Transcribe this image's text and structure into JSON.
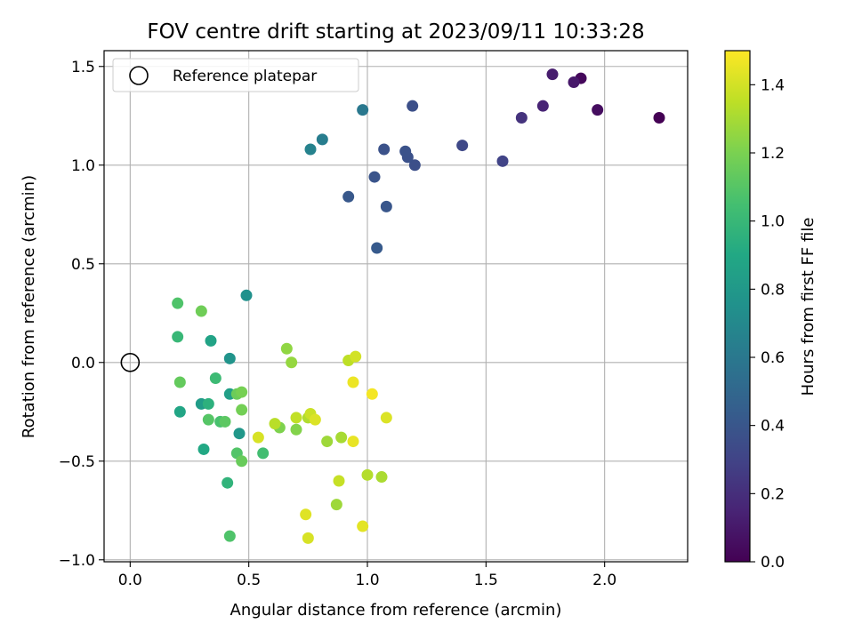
{
  "chart_data": {
    "type": "scatter",
    "title": "FOV centre drift starting at 2023/09/11 10:33:28",
    "xlabel": "Angular distance from reference (arcmin)",
    "ylabel": "Rotation from reference (arcmin)",
    "xlim": [
      -0.11,
      2.35
    ],
    "ylim": [
      -1.01,
      1.58
    ],
    "xticks": [
      0.0,
      0.5,
      1.0,
      1.5,
      2.0
    ],
    "xtick_labels": [
      "0.0",
      "0.5",
      "1.0",
      "1.5",
      "2.0"
    ],
    "yticks": [
      -1.0,
      -0.5,
      0.0,
      0.5,
      1.0,
      1.5
    ],
    "ytick_labels": [
      "−1.0",
      "−0.5",
      "0.0",
      "0.5",
      "1.0",
      "1.5"
    ],
    "grid": true,
    "legend": {
      "position": "top-left",
      "entries": [
        "Reference platepar"
      ]
    },
    "reference_point": {
      "x": 0.0,
      "y": 0.0,
      "marker": "open-circle"
    },
    "colorbar": {
      "label": "Hours from first FF file",
      "colormap": "viridis",
      "range": [
        0.0,
        1.5
      ],
      "ticks": [
        0.0,
        0.2,
        0.4,
        0.6,
        0.8,
        1.0,
        1.2,
        1.4
      ],
      "tick_labels": [
        "0.0",
        "0.2",
        "0.4",
        "0.6",
        "0.8",
        "1.0",
        "1.2",
        "1.4"
      ]
    },
    "points": [
      {
        "x": 2.23,
        "y": 1.24,
        "c": 0.0
      },
      {
        "x": 1.9,
        "y": 1.44,
        "c": 0.03
      },
      {
        "x": 1.97,
        "y": 1.28,
        "c": 0.05
      },
      {
        "x": 1.87,
        "y": 1.42,
        "c": 0.1
      },
      {
        "x": 1.78,
        "y": 1.46,
        "c": 0.12
      },
      {
        "x": 1.74,
        "y": 1.3,
        "c": 0.15
      },
      {
        "x": 1.65,
        "y": 1.24,
        "c": 0.22
      },
      {
        "x": 1.57,
        "y": 1.02,
        "c": 0.3
      },
      {
        "x": 1.4,
        "y": 1.1,
        "c": 0.33
      },
      {
        "x": 1.2,
        "y": 1.0,
        "c": 0.36
      },
      {
        "x": 1.19,
        "y": 1.3,
        "c": 0.36
      },
      {
        "x": 1.17,
        "y": 1.04,
        "c": 0.37
      },
      {
        "x": 1.16,
        "y": 1.07,
        "c": 0.38
      },
      {
        "x": 1.07,
        "y": 1.08,
        "c": 0.38
      },
      {
        "x": 1.03,
        "y": 0.94,
        "c": 0.39
      },
      {
        "x": 1.08,
        "y": 0.79,
        "c": 0.4
      },
      {
        "x": 0.92,
        "y": 0.84,
        "c": 0.41
      },
      {
        "x": 1.04,
        "y": 0.58,
        "c": 0.42
      },
      {
        "x": 0.98,
        "y": 1.28,
        "c": 0.6
      },
      {
        "x": 0.81,
        "y": 1.13,
        "c": 0.63
      },
      {
        "x": 0.76,
        "y": 1.08,
        "c": 0.66
      },
      {
        "x": 0.49,
        "y": 0.34,
        "c": 0.75
      },
      {
        "x": 0.42,
        "y": 0.02,
        "c": 0.77
      },
      {
        "x": 0.46,
        "y": -0.36,
        "c": 0.79
      },
      {
        "x": 0.3,
        "y": -0.21,
        "c": 0.82
      },
      {
        "x": 0.42,
        "y": -0.16,
        "c": 0.84
      },
      {
        "x": 0.34,
        "y": 0.11,
        "c": 0.87
      },
      {
        "x": 0.21,
        "y": -0.25,
        "c": 0.88
      },
      {
        "x": 0.31,
        "y": -0.44,
        "c": 0.9
      },
      {
        "x": 0.33,
        "y": -0.21,
        "c": 0.95
      },
      {
        "x": 0.41,
        "y": -0.61,
        "c": 0.97
      },
      {
        "x": 0.2,
        "y": 0.13,
        "c": 1.0
      },
      {
        "x": 0.36,
        "y": -0.08,
        "c": 1.02
      },
      {
        "x": 0.56,
        "y": -0.46,
        "c": 1.04
      },
      {
        "x": 0.38,
        "y": -0.3,
        "c": 1.06
      },
      {
        "x": 0.42,
        "y": -0.88,
        "c": 1.08
      },
      {
        "x": 0.2,
        "y": 0.3,
        "c": 1.08
      },
      {
        "x": 0.45,
        "y": -0.46,
        "c": 1.09
      },
      {
        "x": 0.33,
        "y": -0.29,
        "c": 1.1
      },
      {
        "x": 0.4,
        "y": -0.3,
        "c": 1.12
      },
      {
        "x": 0.21,
        "y": -0.1,
        "c": 1.14
      },
      {
        "x": 0.47,
        "y": -0.5,
        "c": 1.15
      },
      {
        "x": 0.45,
        "y": -0.16,
        "c": 1.16
      },
      {
        "x": 0.3,
        "y": 0.26,
        "c": 1.17
      },
      {
        "x": 0.47,
        "y": -0.24,
        "c": 1.18
      },
      {
        "x": 0.47,
        "y": -0.15,
        "c": 1.19
      },
      {
        "x": 0.63,
        "y": -0.33,
        "c": 1.21
      },
      {
        "x": 0.7,
        "y": -0.34,
        "c": 1.22
      },
      {
        "x": 0.66,
        "y": 0.07,
        "c": 1.25
      },
      {
        "x": 0.68,
        "y": 0.0,
        "c": 1.26
      },
      {
        "x": 0.83,
        "y": -0.4,
        "c": 1.28
      },
      {
        "x": 0.87,
        "y": -0.72,
        "c": 1.28
      },
      {
        "x": 0.89,
        "y": -0.38,
        "c": 1.3
      },
      {
        "x": 1.06,
        "y": -0.58,
        "c": 1.31
      },
      {
        "x": 0.75,
        "y": -0.28,
        "c": 1.32
      },
      {
        "x": 1.0,
        "y": -0.57,
        "c": 1.33
      },
      {
        "x": 0.61,
        "y": -0.31,
        "c": 1.34
      },
      {
        "x": 0.92,
        "y": 0.01,
        "c": 1.35
      },
      {
        "x": 0.7,
        "y": -0.28,
        "c": 1.36
      },
      {
        "x": 0.88,
        "y": -0.6,
        "c": 1.37
      },
      {
        "x": 0.76,
        "y": -0.26,
        "c": 1.38
      },
      {
        "x": 0.95,
        "y": 0.03,
        "c": 1.4
      },
      {
        "x": 0.75,
        "y": -0.89,
        "c": 1.41
      },
      {
        "x": 0.54,
        "y": -0.38,
        "c": 1.41
      },
      {
        "x": 1.08,
        "y": -0.28,
        "c": 1.42
      },
      {
        "x": 0.78,
        "y": -0.29,
        "c": 1.42
      },
      {
        "x": 0.74,
        "y": -0.77,
        "c": 1.43
      },
      {
        "x": 0.98,
        "y": -0.83,
        "c": 1.44
      },
      {
        "x": 0.94,
        "y": -0.4,
        "c": 1.45
      },
      {
        "x": 0.94,
        "y": -0.1,
        "c": 1.46
      },
      {
        "x": 1.02,
        "y": -0.16,
        "c": 1.48
      }
    ]
  }
}
